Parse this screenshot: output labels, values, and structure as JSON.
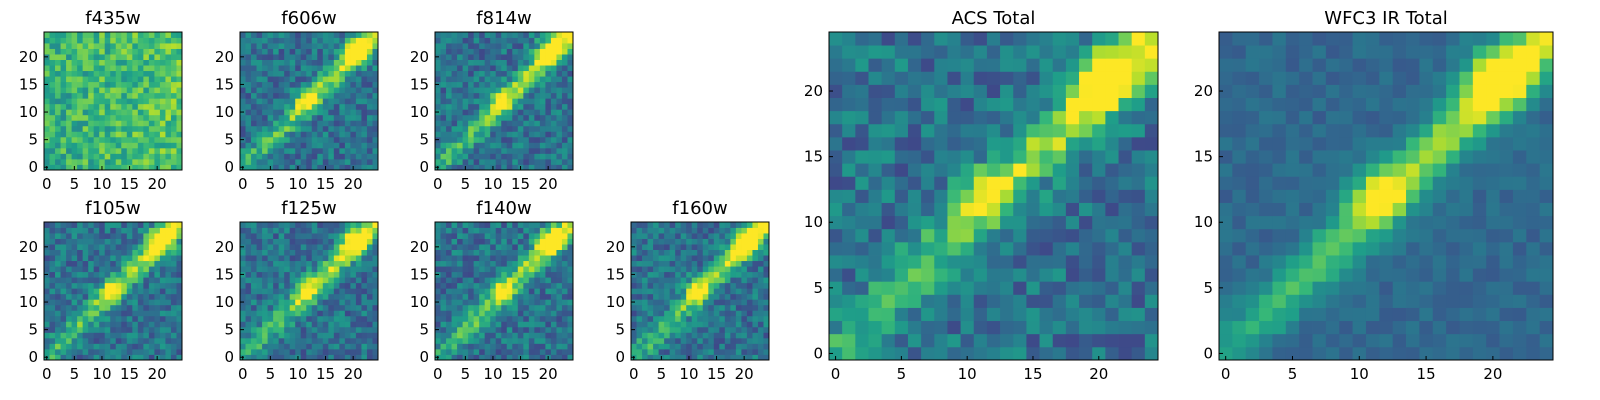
{
  "chart_data": [
    {
      "type": "heatmap",
      "title": "f435w",
      "colormap": "viridis",
      "grid_size": 25,
      "x_ticks": [
        0,
        5,
        10,
        15,
        20
      ],
      "y_ticks": [
        0,
        5,
        10,
        15,
        20
      ],
      "xlim": [
        0,
        24
      ],
      "ylim": [
        0,
        24
      ],
      "pattern": "noise",
      "seed": 11
    },
    {
      "type": "heatmap",
      "title": "f606w",
      "colormap": "viridis",
      "grid_size": 25,
      "x_ticks": [
        0,
        5,
        10,
        15,
        20
      ],
      "y_ticks": [
        0,
        5,
        10,
        15,
        20
      ],
      "xlim": [
        0,
        24
      ],
      "ylim": [
        0,
        24
      ],
      "pattern": "diagonal",
      "seed": 23
    },
    {
      "type": "heatmap",
      "title": "f814w",
      "colormap": "viridis",
      "grid_size": 25,
      "x_ticks": [
        0,
        5,
        10,
        15,
        20
      ],
      "y_ticks": [
        0,
        5,
        10,
        15,
        20
      ],
      "xlim": [
        0,
        24
      ],
      "ylim": [
        0,
        24
      ],
      "pattern": "diagonal",
      "seed": 37
    },
    {
      "type": "heatmap",
      "title": "f105w",
      "colormap": "viridis",
      "grid_size": 25,
      "x_ticks": [
        0,
        5,
        10,
        15,
        20
      ],
      "y_ticks": [
        0,
        5,
        10,
        15,
        20
      ],
      "xlim": [
        0,
        24
      ],
      "ylim": [
        0,
        24
      ],
      "pattern": "diagonal",
      "seed": 41
    },
    {
      "type": "heatmap",
      "title": "f125w",
      "colormap": "viridis",
      "grid_size": 25,
      "x_ticks": [
        0,
        5,
        10,
        15,
        20
      ],
      "y_ticks": [
        0,
        5,
        10,
        15,
        20
      ],
      "xlim": [
        0,
        24
      ],
      "ylim": [
        0,
        24
      ],
      "pattern": "diagonal",
      "seed": 53
    },
    {
      "type": "heatmap",
      "title": "f140w",
      "colormap": "viridis",
      "grid_size": 25,
      "x_ticks": [
        0,
        5,
        10,
        15,
        20
      ],
      "y_ticks": [
        0,
        5,
        10,
        15,
        20
      ],
      "xlim": [
        0,
        24
      ],
      "ylim": [
        0,
        24
      ],
      "pattern": "diagonal",
      "seed": 67
    },
    {
      "type": "heatmap",
      "title": "f160w",
      "colormap": "viridis",
      "grid_size": 25,
      "x_ticks": [
        0,
        5,
        10,
        15,
        20
      ],
      "y_ticks": [
        0,
        5,
        10,
        15,
        20
      ],
      "xlim": [
        0,
        24
      ],
      "ylim": [
        0,
        24
      ],
      "pattern": "diagonal",
      "seed": 71
    },
    {
      "type": "heatmap",
      "title": "ACS Total",
      "colormap": "viridis",
      "grid_size": 25,
      "x_ticks": [
        0,
        5,
        10,
        15,
        20
      ],
      "y_ticks": [
        0,
        5,
        10,
        15,
        20
      ],
      "xlim": [
        0,
        24
      ],
      "ylim": [
        0,
        24
      ],
      "pattern": "diagonal",
      "seed": 83
    },
    {
      "type": "heatmap",
      "title": "WFC3 IR Total",
      "colormap": "viridis",
      "grid_size": 25,
      "x_ticks": [
        0,
        5,
        10,
        15,
        20
      ],
      "y_ticks": [
        0,
        5,
        10,
        15,
        20
      ],
      "xlim": [
        0,
        24
      ],
      "ylim": [
        0,
        24
      ],
      "pattern": "smooth",
      "seed": 97
    }
  ]
}
